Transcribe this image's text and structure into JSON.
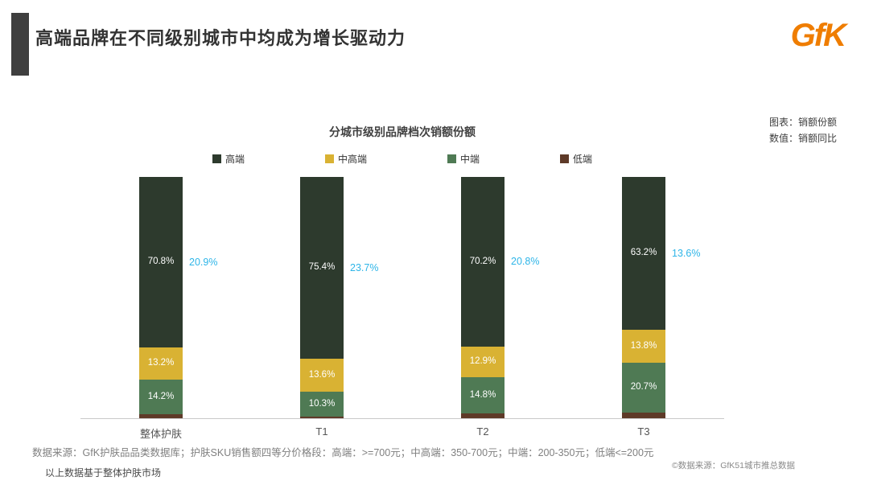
{
  "header": {
    "title": "高端品牌在不同级别城市中均成为增长驱动力",
    "logo": "GfK"
  },
  "notes": {
    "line1": "图表：销额份额",
    "line2": "数值：销额同比"
  },
  "chart_data": {
    "type": "bar",
    "stacked": true,
    "percent": true,
    "title": "分城市级别品牌档次销额份额",
    "categories": [
      "整体护肤",
      "T1",
      "T2",
      "T3"
    ],
    "series": [
      {
        "name": "高端",
        "color": "#2d3a2d",
        "values": [
          70.8,
          75.4,
          70.2,
          63.2
        ]
      },
      {
        "name": "中高端",
        "color": "#d9b233",
        "values": [
          13.2,
          13.6,
          12.9,
          13.8
        ]
      },
      {
        "name": "中端",
        "color": "#4f7a54",
        "values": [
          14.2,
          10.3,
          14.8,
          20.7
        ]
      },
      {
        "name": "低端",
        "color": "#5e3a28",
        "values": [
          1.8,
          0.7,
          2.1,
          2.3
        ]
      }
    ],
    "label_min_pct": 5,
    "growth_labels": {
      "name": "销额同比",
      "color": "#2eb5e8",
      "values": [
        "20.9%",
        "23.7%",
        "20.8%",
        "13.6%"
      ]
    },
    "ylim": [
      0,
      100
    ],
    "legend_position": "top",
    "grid": false
  },
  "footer": {
    "source": "数据来源：GfK护肤品品类数据库；护肤SKU销售额四等分价格段：高端：>=700元；中高端：350-700元；中端：200-350元；低端<=200元",
    "note": "以上数据基于整体护肤市场",
    "right": "©数据来源：GfK51城市推总数据"
  }
}
